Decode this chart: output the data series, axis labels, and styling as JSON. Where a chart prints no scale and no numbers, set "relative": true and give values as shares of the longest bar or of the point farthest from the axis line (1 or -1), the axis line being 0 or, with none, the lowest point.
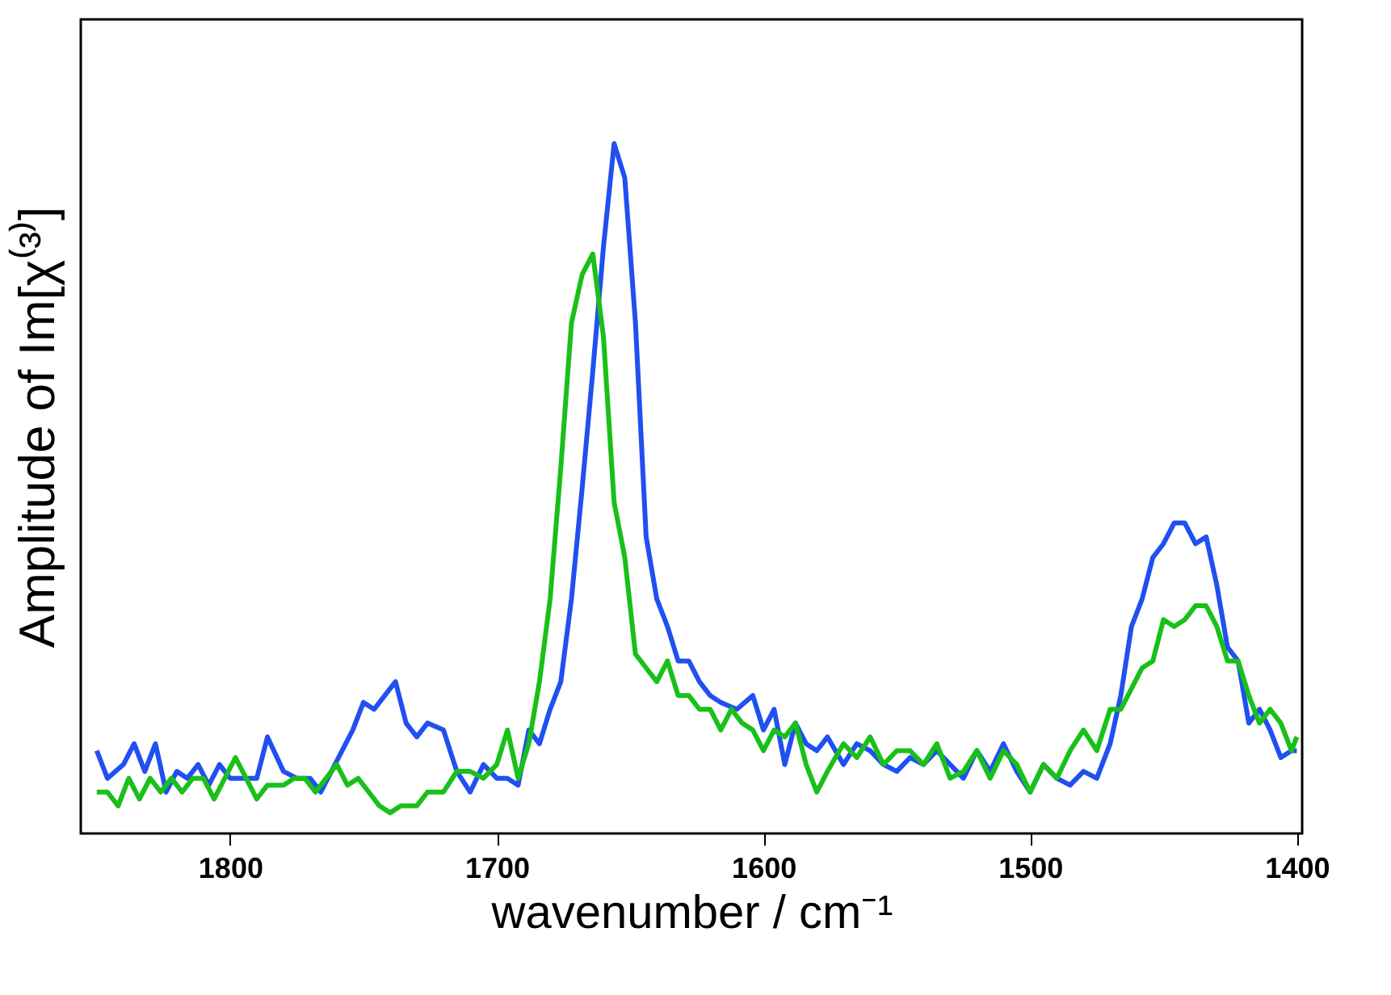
{
  "chart_data": {
    "type": "line",
    "relative": true,
    "xlabel": "wavenumber / cm⁻¹",
    "ylabel": "Amplitude of Im[χ⁽³⁾]",
    "xlim": [
      1856,
      1398
    ],
    "xticks": [
      1800,
      1700,
      1600,
      1500,
      1400
    ],
    "tick_labels": "x",
    "grid": false,
    "legend": false,
    "line_style": "solid",
    "marker": "none",
    "series": [
      {
        "color": "#2050f0",
        "x": [
          1850,
          1846,
          1840,
          1836,
          1832,
          1828,
          1824,
          1820,
          1816,
          1812,
          1808,
          1804,
          1800,
          1795,
          1790,
          1786,
          1780,
          1775,
          1770,
          1766,
          1762,
          1758,
          1754,
          1750,
          1746,
          1742,
          1738,
          1734,
          1730,
          1726,
          1720,
          1715,
          1710,
          1705,
          1700,
          1696,
          1692,
          1688,
          1684,
          1680,
          1676,
          1672,
          1668,
          1664,
          1660,
          1656,
          1652,
          1648,
          1644,
          1640,
          1636,
          1632,
          1628,
          1624,
          1620,
          1616,
          1610,
          1604,
          1600,
          1596,
          1592,
          1588,
          1584,
          1580,
          1576,
          1570,
          1565,
          1560,
          1555,
          1550,
          1545,
          1540,
          1535,
          1530,
          1525,
          1520,
          1515,
          1510,
          1505,
          1500,
          1495,
          1490,
          1485,
          1480,
          1475,
          1470,
          1466,
          1462,
          1458,
          1454,
          1450,
          1446,
          1442,
          1438,
          1434,
          1430,
          1426,
          1422,
          1418,
          1414,
          1410,
          1406,
          1402,
          1400
        ],
        "values": [
          0.12,
          0.08,
          0.1,
          0.13,
          0.09,
          0.13,
          0.06,
          0.09,
          0.08,
          0.1,
          0.07,
          0.1,
          0.08,
          0.08,
          0.08,
          0.14,
          0.09,
          0.08,
          0.08,
          0.06,
          0.09,
          0.12,
          0.15,
          0.19,
          0.18,
          0.2,
          0.22,
          0.16,
          0.14,
          0.16,
          0.15,
          0.09,
          0.06,
          0.1,
          0.08,
          0.08,
          0.07,
          0.15,
          0.13,
          0.18,
          0.22,
          0.34,
          0.5,
          0.67,
          0.85,
          1.0,
          0.95,
          0.74,
          0.43,
          0.34,
          0.3,
          0.25,
          0.25,
          0.22,
          0.2,
          0.19,
          0.18,
          0.2,
          0.15,
          0.18,
          0.1,
          0.16,
          0.13,
          0.12,
          0.14,
          0.1,
          0.13,
          0.12,
          0.1,
          0.09,
          0.11,
          0.1,
          0.12,
          0.1,
          0.08,
          0.12,
          0.09,
          0.13,
          0.09,
          0.06,
          0.1,
          0.08,
          0.07,
          0.09,
          0.08,
          0.13,
          0.2,
          0.3,
          0.34,
          0.4,
          0.42,
          0.45,
          0.45,
          0.42,
          0.43,
          0.36,
          0.27,
          0.25,
          0.16,
          0.18,
          0.15,
          0.11,
          0.12,
          0.12
        ]
      },
      {
        "color": "#19c019",
        "x": [
          1850,
          1846,
          1842,
          1838,
          1834,
          1830,
          1826,
          1822,
          1818,
          1814,
          1810,
          1806,
          1802,
          1798,
          1794,
          1790,
          1786,
          1780,
          1776,
          1772,
          1768,
          1764,
          1760,
          1756,
          1752,
          1748,
          1744,
          1740,
          1736,
          1730,
          1726,
          1720,
          1715,
          1710,
          1705,
          1700,
          1696,
          1692,
          1688,
          1684,
          1680,
          1676,
          1672,
          1668,
          1664,
          1660,
          1656,
          1652,
          1648,
          1644,
          1640,
          1636,
          1632,
          1628,
          1624,
          1620,
          1616,
          1612,
          1608,
          1604,
          1600,
          1596,
          1592,
          1588,
          1584,
          1580,
          1576,
          1570,
          1565,
          1560,
          1555,
          1550,
          1545,
          1540,
          1535,
          1530,
          1525,
          1520,
          1515,
          1510,
          1505,
          1500,
          1495,
          1490,
          1485,
          1480,
          1475,
          1470,
          1466,
          1462,
          1458,
          1454,
          1450,
          1446,
          1442,
          1438,
          1434,
          1430,
          1426,
          1422,
          1418,
          1414,
          1410,
          1406,
          1402,
          1400
        ],
        "values": [
          0.06,
          0.06,
          0.04,
          0.08,
          0.05,
          0.08,
          0.06,
          0.08,
          0.06,
          0.08,
          0.08,
          0.05,
          0.08,
          0.11,
          0.08,
          0.05,
          0.07,
          0.07,
          0.08,
          0.08,
          0.06,
          0.08,
          0.1,
          0.07,
          0.08,
          0.06,
          0.04,
          0.03,
          0.04,
          0.04,
          0.06,
          0.06,
          0.09,
          0.09,
          0.08,
          0.1,
          0.15,
          0.08,
          0.13,
          0.22,
          0.34,
          0.53,
          0.74,
          0.81,
          0.84,
          0.72,
          0.48,
          0.4,
          0.26,
          0.24,
          0.22,
          0.25,
          0.2,
          0.2,
          0.18,
          0.18,
          0.15,
          0.18,
          0.16,
          0.15,
          0.12,
          0.15,
          0.14,
          0.16,
          0.1,
          0.06,
          0.09,
          0.13,
          0.11,
          0.14,
          0.1,
          0.12,
          0.12,
          0.1,
          0.13,
          0.08,
          0.09,
          0.12,
          0.08,
          0.12,
          0.1,
          0.06,
          0.1,
          0.08,
          0.12,
          0.15,
          0.12,
          0.18,
          0.18,
          0.21,
          0.24,
          0.25,
          0.31,
          0.3,
          0.31,
          0.33,
          0.33,
          0.3,
          0.25,
          0.25,
          0.2,
          0.16,
          0.18,
          0.16,
          0.12,
          0.14
        ]
      }
    ]
  }
}
